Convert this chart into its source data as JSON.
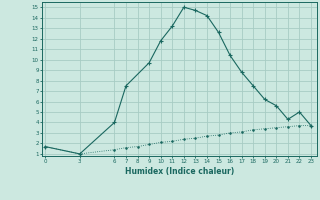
{
  "xlabel": "Humidex (Indice chaleur)",
  "ylabel": "",
  "background_color": "#cce8e0",
  "grid_color": "#a8ccc4",
  "line_color": "#1a6860",
  "upper_x": [
    0,
    3,
    6,
    7,
    9,
    10,
    11,
    12,
    13,
    14,
    15,
    16,
    17,
    18,
    19,
    20,
    21,
    22,
    23
  ],
  "upper_y": [
    1.7,
    1.0,
    4.0,
    7.5,
    9.7,
    11.8,
    13.2,
    15.0,
    14.7,
    14.2,
    12.6,
    10.4,
    8.8,
    7.5,
    6.2,
    5.6,
    4.3,
    5.0,
    3.7
  ],
  "lower_x": [
    0,
    3,
    6,
    7,
    8,
    9,
    10,
    11,
    12,
    13,
    14,
    15,
    16,
    17,
    18,
    19,
    20,
    21,
    22,
    23
  ],
  "lower_y": [
    1.7,
    1.0,
    1.4,
    1.6,
    1.7,
    1.9,
    2.1,
    2.2,
    2.4,
    2.5,
    2.7,
    2.8,
    3.0,
    3.1,
    3.3,
    3.4,
    3.5,
    3.6,
    3.7,
    3.7
  ],
  "yticks": [
    1,
    2,
    3,
    4,
    5,
    6,
    7,
    8,
    9,
    10,
    11,
    12,
    13,
    14,
    15
  ],
  "xticks": [
    0,
    3,
    6,
    7,
    8,
    9,
    10,
    11,
    12,
    13,
    14,
    15,
    16,
    17,
    18,
    19,
    20,
    21,
    22,
    23
  ],
  "ylim": [
    0.8,
    15.5
  ],
  "xlim": [
    -0.3,
    23.5
  ]
}
